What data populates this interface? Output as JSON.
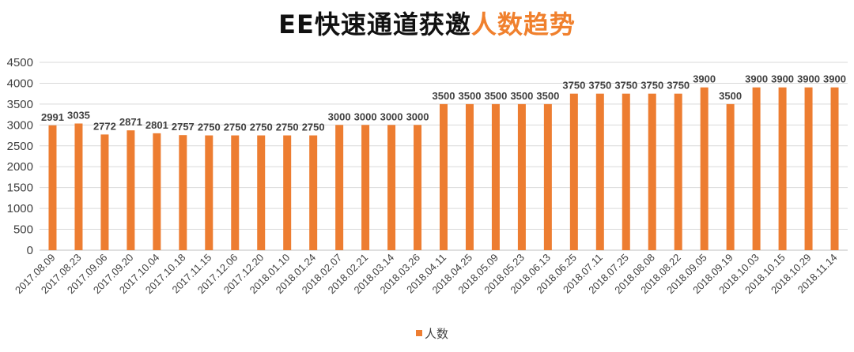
{
  "title_main": "EE快速通道获邀",
  "title_highlight": "人数趋势",
  "chart_data": {
    "type": "bar",
    "categories": [
      "2017.08.09",
      "2017.08.23",
      "2017.09.06",
      "2017.09.20",
      "2017.10.04",
      "2017.10.18",
      "2017.11.15",
      "2017.12.06",
      "2017.12.20",
      "2018.01.10",
      "2018.01.24",
      "2018.02.07",
      "2018.02.21",
      "2018.03.14",
      "2018.03.26",
      "2018.04.11",
      "2018.04.25",
      "2018.05.09",
      "2018.05.23",
      "2018.06.13",
      "2018.06.25",
      "2018.07.11",
      "2018.07.25",
      "2018.08.08",
      "2018.08.22",
      "2018.09.05",
      "2018.09.19",
      "2018.10.03",
      "2018.10.15",
      "2018.10.29",
      "2018.11.14"
    ],
    "series": [
      {
        "name": "人数",
        "values": [
          2991,
          3035,
          2772,
          2871,
          2801,
          2757,
          2750,
          2750,
          2750,
          2750,
          2750,
          3000,
          3000,
          3000,
          3000,
          3500,
          3500,
          3500,
          3500,
          3500,
          3750,
          3750,
          3750,
          3750,
          3750,
          3900,
          3500,
          3900,
          3900,
          3900,
          3900
        ]
      }
    ],
    "yticks": [
      0,
      500,
      1000,
      1500,
      2000,
      2500,
      3000,
      3500,
      4000,
      4500
    ],
    "ylim": [
      0,
      4500
    ],
    "grid": true,
    "legend": "bottom",
    "colors": {
      "bar": "#ed7d31",
      "grid": "#d9d9d9",
      "title_highlight": "#f0802d"
    }
  }
}
